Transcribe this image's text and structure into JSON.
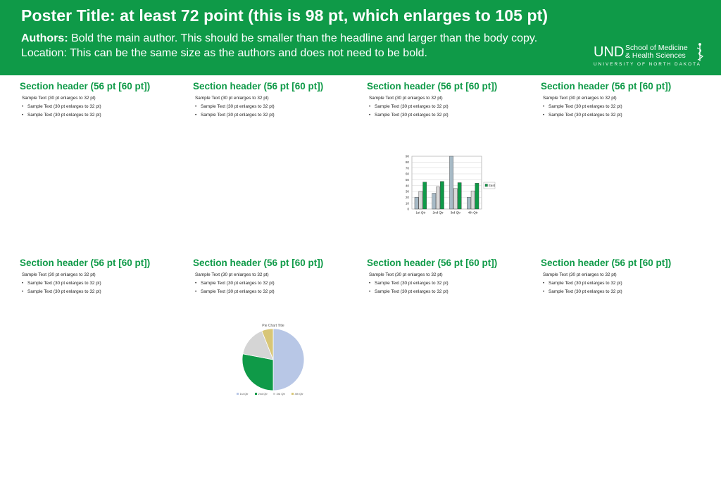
{
  "header": {
    "title": "Poster Title: at least 72 point (this is 98 pt, which enlarges to 105 pt)",
    "authors_label": "Authors:",
    "authors_text": "Bold the main author. This should be smaller than the headline and larger than the body copy.",
    "location_text": "Location: This can be the same size as the authors and does not need to be bold.",
    "bg_color": "#0f9a48",
    "logo": {
      "mark": "UND",
      "line1": "School of Medicine",
      "line2": "& Health Sciences",
      "line3": "UNIVERSITY OF NORTH DAKOTA",
      "icon": "caduceus-icon"
    }
  },
  "sections": [
    {
      "header": "Section header (56 pt [60 pt])",
      "text": "Sample Text (30 pt enlarges to 32 pt)",
      "bullets": [
        "Sample Text (30 pt enlarges to 32 pt)",
        "Sample Text (30 pt enlarges to 32 pt)"
      ]
    },
    {
      "header": "Section header (56 pt [60 pt])",
      "text": "Sample Text (30 pt enlarges to 32 pt)",
      "bullets": [
        "Sample Text (30 pt enlarges to 32 pt)",
        "Sample Text (30 pt enlarges to 32 pt)"
      ]
    },
    {
      "header": "Section header (56 pt [60 pt])",
      "text": "Sample Text (30 pt enlarges to 32 pt)",
      "bullets": [
        "Sample Text (30 pt enlarges to 32 pt)",
        "Sample Text (30 pt enlarges to 32 pt)"
      ]
    },
    {
      "header": "Section header (56 pt [60 pt])",
      "text": "Sample Text (30 pt enlarges to 32 pt)",
      "bullets": [
        "Sample Text (30 pt enlarges to 32 pt)",
        "Sample Text (30 pt enlarges to 32 pt)"
      ]
    },
    {
      "header": "Section header (56 pt [60 pt])",
      "text": "Sample Text (30 pt enlarges to 32 pt)",
      "bullets": [
        "Sample Text (30 pt enlarges to 32 pt)",
        "Sample Text (30 pt enlarges to 32 pt)"
      ]
    },
    {
      "header": "Section header (56 pt [60 pt])",
      "text": "Sample Text (30 pt enlarges to 32 pt)",
      "bullets": [
        "Sample Text (30 pt enlarges to 32 pt)",
        "Sample Text (30 pt enlarges to 32 pt)"
      ]
    },
    {
      "header": "Section header (56 pt [60 pt])",
      "text": "Sample Text (30 pt enlarges to 32 pt)",
      "bullets": [
        "Sample Text (30 pt enlarges to 32 pt)",
        "Sample Text (30 pt enlarges to 32 pt)"
      ]
    },
    {
      "header": "Section header (56 pt [60 pt])",
      "text": "Sample Text (30 pt enlarges to 32 pt)",
      "bullets": [
        "Sample Text (30 pt enlarges to 32 pt)",
        "Sample Text (30 pt enlarges to 32 pt)"
      ]
    }
  ],
  "chart_data": [
    {
      "type": "bar",
      "categories": [
        "1st Qtr",
        "2nd Qtr",
        "3rd Qtr",
        "4th Qtr"
      ],
      "series": [
        {
          "name": "",
          "color": "#a7bac6",
          "values": [
            20,
            27,
            90,
            20
          ]
        },
        {
          "name": "",
          "color": "#d9d9d9",
          "values": [
            30,
            38,
            35,
            31
          ]
        },
        {
          "name": "East",
          "color": "#0f9a48",
          "values": [
            46,
            47,
            45,
            44
          ]
        }
      ],
      "ylim": [
        0,
        90
      ],
      "yticks": [
        0,
        10,
        20,
        30,
        40,
        50,
        60,
        70,
        80,
        90
      ],
      "legend": "right",
      "grid": true,
      "title": "",
      "xlabel": "",
      "ylabel": ""
    },
    {
      "type": "pie",
      "title": "Pie Chart Title",
      "categories": [
        "1st Qtr",
        "2nd Qtr",
        "3rd Qtr",
        "4th Qtr"
      ],
      "values": [
        50,
        28,
        16,
        6
      ],
      "colors": [
        "#b8c7e6",
        "#0f9a48",
        "#d5d5d5",
        "#d8c677"
      ],
      "legend": "bottom"
    }
  ]
}
